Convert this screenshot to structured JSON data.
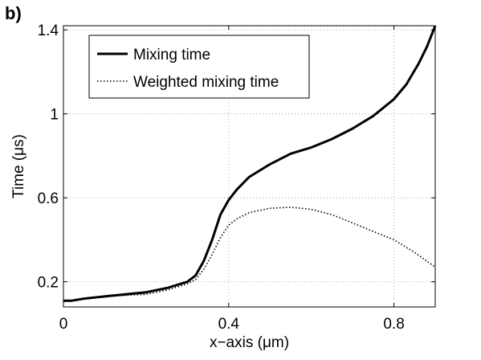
{
  "panel_label": "b)",
  "chart_data": {
    "type": "line",
    "title": "",
    "xlabel": "x−axis (μm)",
    "ylabel": "Time (μs)",
    "xlim": [
      0,
      0.9
    ],
    "ylim": [
      0.08,
      1.42
    ],
    "xticks": [
      0,
      0.4,
      0.8
    ],
    "xtick_labels": [
      "0",
      "0.4",
      "0.8"
    ],
    "yticks": [
      0.2,
      0.6,
      1.0,
      1.4
    ],
    "ytick_labels": [
      "0.2",
      "0.6",
      "1",
      "1.4"
    ],
    "grid": true,
    "legend_position": "top-left",
    "series": [
      {
        "name": "Mixing time",
        "style": "solid",
        "color": "#000000",
        "x": [
          0,
          0.02,
          0.05,
          0.1,
          0.15,
          0.2,
          0.25,
          0.3,
          0.32,
          0.34,
          0.36,
          0.38,
          0.4,
          0.42,
          0.45,
          0.5,
          0.55,
          0.6,
          0.65,
          0.7,
          0.75,
          0.8,
          0.83,
          0.86,
          0.88,
          0.9
        ],
        "y": [
          0.11,
          0.11,
          0.12,
          0.13,
          0.14,
          0.15,
          0.17,
          0.2,
          0.23,
          0.3,
          0.4,
          0.52,
          0.59,
          0.64,
          0.7,
          0.76,
          0.81,
          0.84,
          0.88,
          0.93,
          0.99,
          1.07,
          1.14,
          1.24,
          1.32,
          1.42
        ]
      },
      {
        "name": "Weighted mixing time",
        "style": "dotted",
        "color": "#000000",
        "x": [
          0,
          0.02,
          0.05,
          0.1,
          0.15,
          0.2,
          0.25,
          0.3,
          0.32,
          0.34,
          0.36,
          0.38,
          0.4,
          0.42,
          0.45,
          0.5,
          0.55,
          0.6,
          0.65,
          0.7,
          0.75,
          0.8,
          0.85,
          0.9
        ],
        "y": [
          0.11,
          0.11,
          0.12,
          0.13,
          0.135,
          0.14,
          0.16,
          0.19,
          0.21,
          0.26,
          0.33,
          0.41,
          0.47,
          0.5,
          0.53,
          0.55,
          0.555,
          0.545,
          0.52,
          0.48,
          0.44,
          0.4,
          0.34,
          0.27
        ]
      }
    ]
  }
}
